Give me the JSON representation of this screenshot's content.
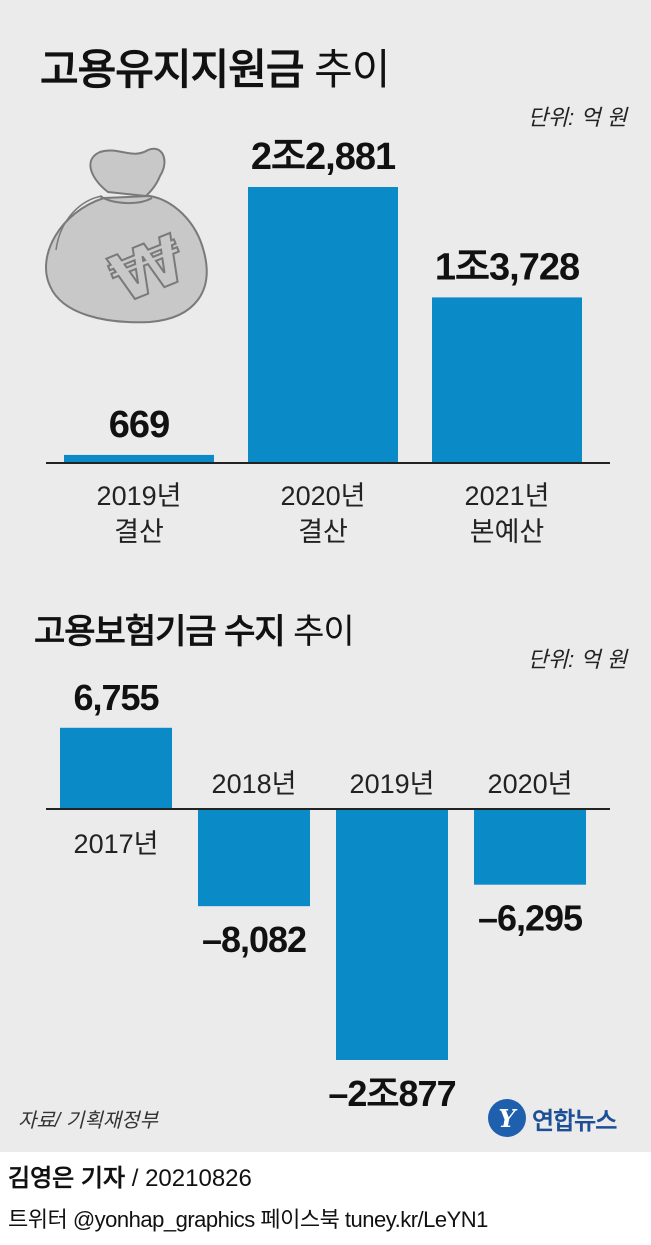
{
  "title1": {
    "bold": "고용유지지원금",
    "light": " 추이"
  },
  "unit1": "단위: 억 원",
  "title2": {
    "bold": "고용보험기금 수지",
    "light": " 추이"
  },
  "unit2": "단위: 억 원",
  "chart_data": [
    {
      "type": "bar",
      "title": "고용유지지원금 추이",
      "unit": "단위: 억 원",
      "categories": [
        [
          "2019년",
          "결산"
        ],
        [
          "2020년",
          "결산"
        ],
        [
          "2021년",
          "본예산"
        ]
      ],
      "values": [
        669,
        22881,
        13728
      ],
      "value_labels": [
        "669",
        "2조2,881",
        "1조3,728"
      ],
      "ylim": [
        0,
        22881
      ],
      "bar_color": "#0a8ac6",
      "grid": false
    },
    {
      "type": "bar",
      "title": "고용보험기금 수지 추이",
      "unit": "단위: 억 원",
      "categories": [
        "2017년",
        "2018년",
        "2019년",
        "2020년"
      ],
      "values": [
        6755,
        -8082,
        -20877,
        -6295
      ],
      "value_labels": [
        "6,755",
        "–8,082",
        "–2조877",
        "–6,295"
      ],
      "ylim": [
        -20877,
        6755
      ],
      "bar_color": "#0a8ac6",
      "grid": false
    }
  ],
  "icons": {
    "moneybag": "money-bag-won-icon"
  },
  "footer": {
    "source": "자료/ 기획재정부",
    "logo_text": "연합뉴스",
    "reporter": "김영은 기자",
    "date": "/ 20210826",
    "social": "트위터 @yonhap_graphics  페이스북 tuney.kr/LeYN1"
  }
}
